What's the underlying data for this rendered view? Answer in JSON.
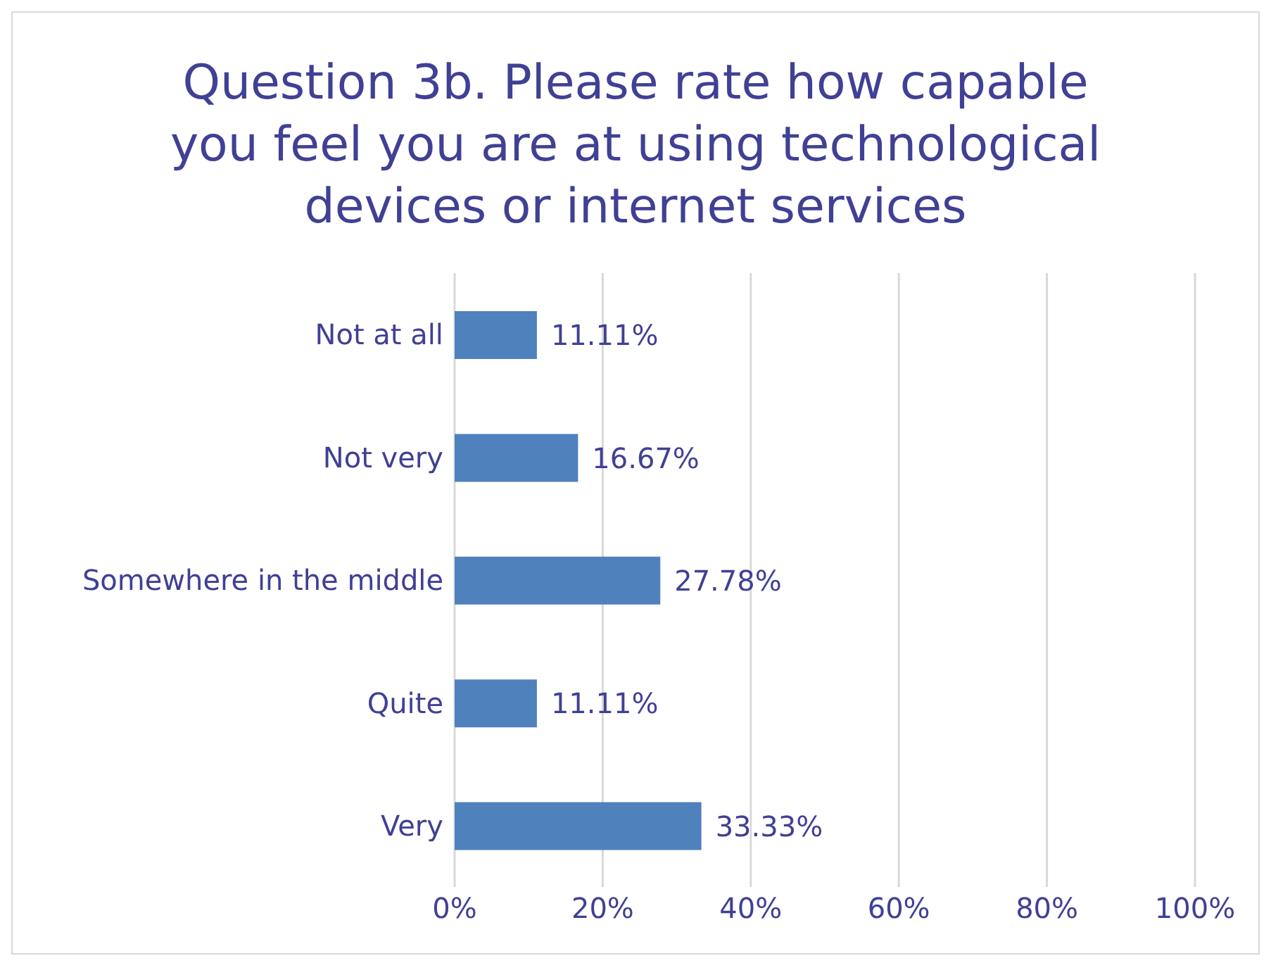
{
  "chart_data": {
    "type": "bar",
    "orientation": "horizontal",
    "title": "Question 3b. Please rate how capable you feel you are at using technological devices or internet services",
    "categories": [
      "Not at all",
      "Not very",
      "Somewhere in the middle",
      "Quite",
      "Very"
    ],
    "values": [
      11.11,
      16.67,
      27.78,
      11.11,
      33.33
    ],
    "value_labels": [
      "11.11%",
      "16.67%",
      "27.78%",
      "11.11%",
      "33.33%"
    ],
    "color": "#4f81bd",
    "xlim": [
      0,
      100
    ],
    "xticks": [
      {
        "value": 0,
        "label": "0%"
      },
      {
        "value": 20,
        "label": "20%"
      },
      {
        "value": 40,
        "label": "40%"
      },
      {
        "value": 60,
        "label": "60%"
      },
      {
        "value": 80,
        "label": "80%"
      },
      {
        "value": 100,
        "label": "100%"
      }
    ],
    "grid": "x",
    "legend": false
  }
}
